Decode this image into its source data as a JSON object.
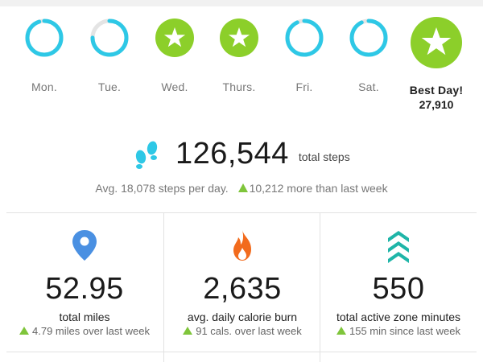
{
  "days": [
    {
      "label": "Mon.",
      "status": "near-goal",
      "progress": 0.95
    },
    {
      "label": "Tue.",
      "status": "partial",
      "progress": 0.75
    },
    {
      "label": "Wed.",
      "status": "goal-met"
    },
    {
      "label": "Thurs.",
      "status": "goal-met"
    },
    {
      "label": "Fri.",
      "status": "near-goal",
      "progress": 0.93
    },
    {
      "label": "Sat.",
      "status": "near-goal",
      "progress": 0.93
    }
  ],
  "best_day": {
    "label": "Best Day!",
    "steps": "27,910",
    "status": "goal-met"
  },
  "steps": {
    "total": "126,544",
    "unit": "total steps",
    "average": "Avg. 18,078 steps per day.",
    "delta": "10,212 more than last week",
    "icon": "footsteps-icon"
  },
  "stats": [
    {
      "icon": "location-pin-icon",
      "value": "52.95",
      "label": "total miles",
      "delta": "4.79 miles over last week"
    },
    {
      "icon": "flame-icon",
      "value": "2,635",
      "label": "avg. daily calorie burn",
      "delta": "91 cals. over last week"
    },
    {
      "icon": "active-zone-chevrons-icon",
      "value": "550",
      "label": "total active zone minutes",
      "delta": "155 min since last week"
    }
  ],
  "colors": {
    "ring": "#2ec8e6",
    "ring_track": "#e4e4e4",
    "goal_green": "#8ccf2a",
    "pin_blue": "#4a90e2",
    "flame_orange": "#f26b1d",
    "zone_teal": "#1fb5a8",
    "delta_green": "#7fc53b"
  }
}
